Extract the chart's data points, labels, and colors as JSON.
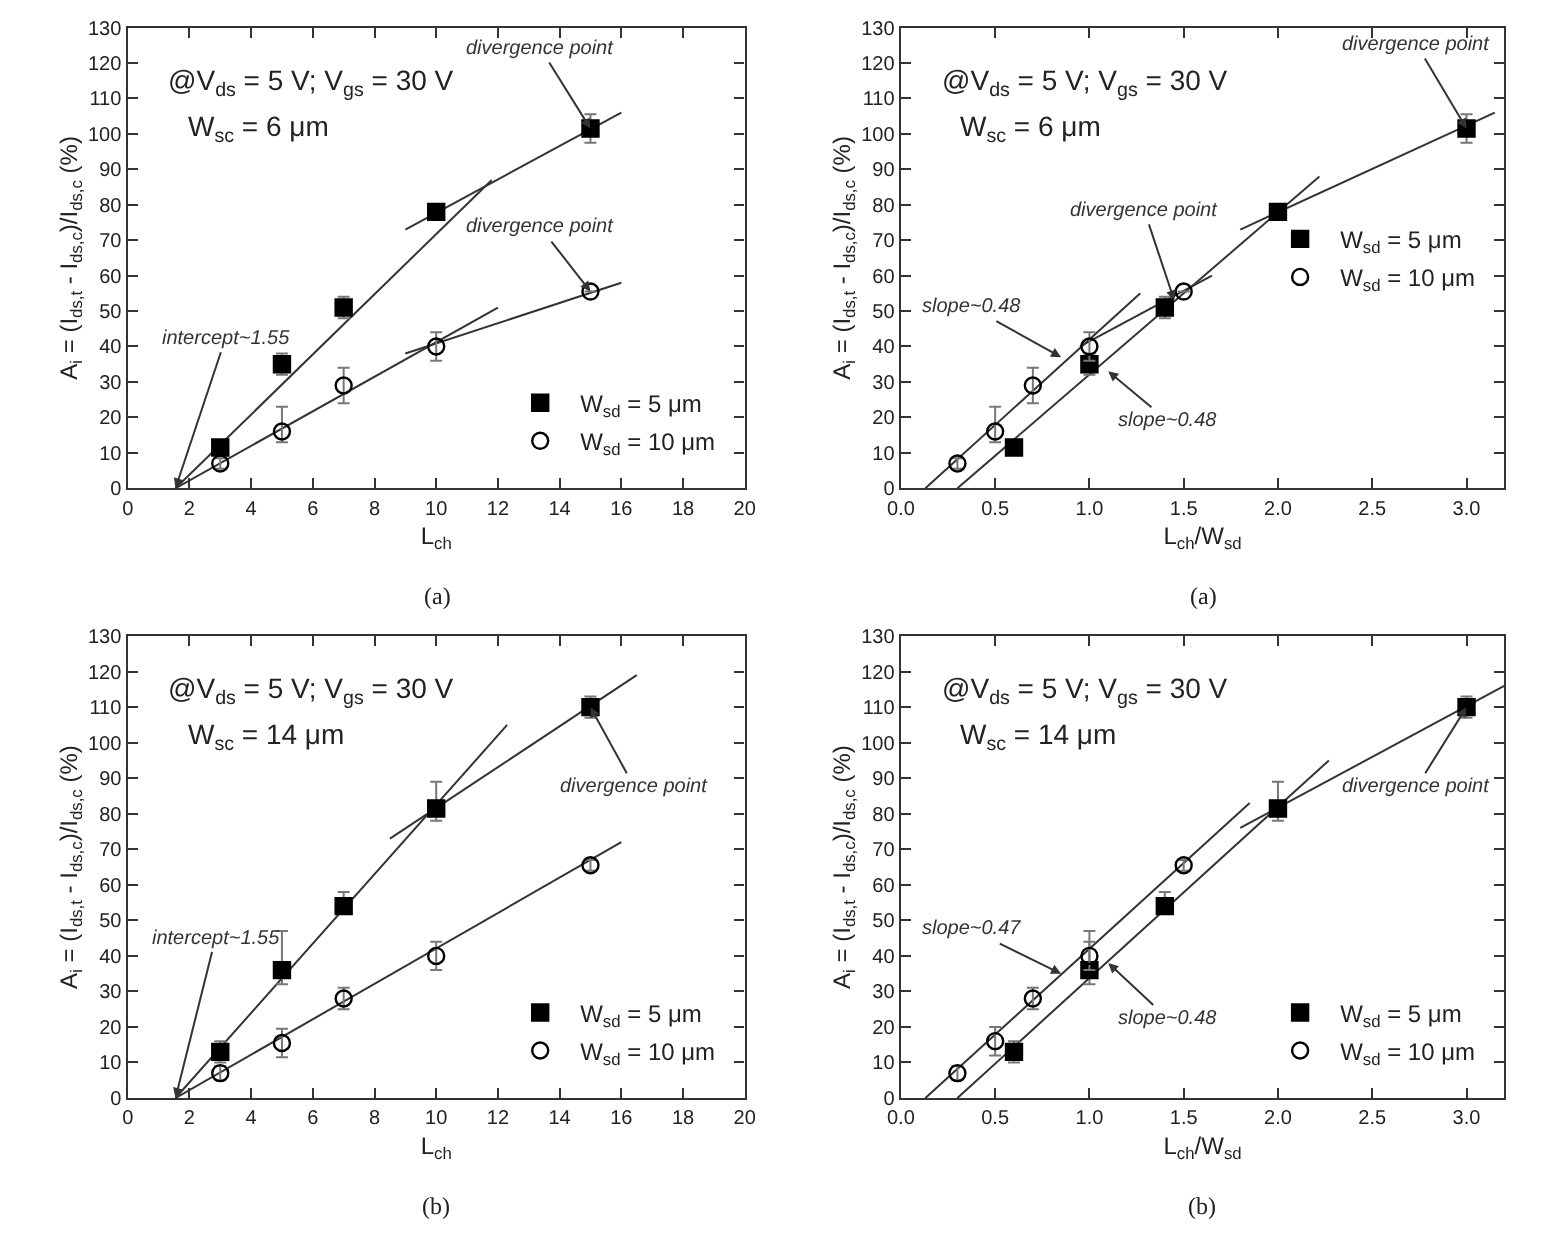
{
  "chart_data": [
    {
      "type": "scatter",
      "xlabel": "L$_{ch}$",
      "ylabel": "A$_{i}$ = (I$_{ds,t}$ - I$_{ds,c}$)/I$_{ds,c}$ (%)",
      "xlim": [
        0,
        20
      ],
      "xticks": [
        0,
        2,
        4,
        6,
        8,
        10,
        12,
        14,
        16,
        18,
        20
      ],
      "ylim": [
        0,
        130
      ],
      "yticks": [
        0,
        10,
        20,
        30,
        40,
        50,
        60,
        70,
        80,
        90,
        100,
        110,
        120,
        130
      ],
      "legend": "bottom right",
      "annotations": [
        "@V$_{ds}$ = 5 V; V$_{gs}$ = 30 V",
        "W$_{sc}$ = 6 μm",
        "(a)",
        {
          "text": "divergence point",
          "x": 15,
          "y": 101.5
        },
        {
          "text": "divergence point",
          "x": 15,
          "y": 55.5
        },
        {
          "text": "intercept~1.55",
          "x": 1.55,
          "y": 0
        }
      ],
      "series": [
        {
          "type": "line",
          "color": "#333333",
          "marker": "none",
          "x": [
            1.55,
            11.8
          ],
          "values": [
            0,
            87
          ]
        },
        {
          "type": "line",
          "color": "#333333",
          "marker": "none",
          "x": [
            9,
            16
          ],
          "values": [
            73,
            106
          ]
        },
        {
          "type": "line",
          "color": "#333333",
          "marker": "none",
          "x": [
            1.55,
            12
          ],
          "values": [
            0,
            51
          ]
        },
        {
          "type": "line",
          "color": "#333333",
          "marker": "none",
          "x": [
            9,
            16
          ],
          "values": [
            38,
            58
          ]
        },
        {
          "name": "W$_{sd}$ = 5 μm",
          "color": "#000000",
          "marker": "square",
          "x": [
            3,
            5,
            7,
            10,
            15
          ],
          "values": [
            11.5,
            35,
            51,
            78,
            101.5
          ],
          "errors": [
            null,
            3,
            3,
            null,
            4
          ]
        },
        {
          "name": "W$_{sd}$ = 10 μm",
          "color": "#000000",
          "marker": "circle",
          "x": [
            3,
            5,
            7,
            10,
            15
          ],
          "values": [
            7,
            16,
            29,
            40,
            55.5
          ],
          "errors": [
            1.5,
            [
              13,
              23
            ],
            [
              24,
              34
            ],
            [
              36,
              44
            ],
            null
          ]
        }
      ]
    },
    {
      "type": "scatter",
      "xlabel": "L$_{ch}$/W$_{sd}$",
      "ylabel": "A$_{i}$ = (I$_{ds,t}$ - I$_{ds,c}$)/I$_{ds,c}$ (%)",
      "xlim": [
        0,
        3.2
      ],
      "xticks": [
        {
          "value": 0,
          "label": "0.0"
        },
        0.5,
        {
          "value": 1,
          "label": "1.0"
        },
        1.5,
        {
          "value": 2,
          "label": "2.0"
        },
        2.5,
        {
          "value": 3,
          "label": "3.0"
        }
      ],
      "ylim": [
        0,
        130
      ],
      "yticks": [
        0,
        10,
        20,
        30,
        40,
        50,
        60,
        70,
        80,
        90,
        100,
        110,
        120,
        130
      ],
      "legend": "right",
      "annotations": [
        "@V$_{ds}$ = 5 V; V$_{gs}$ = 30 V",
        "W$_{sc}$ = 6 μm",
        "(a)",
        {
          "text": "divergence point",
          "x": 3,
          "y": 101.5
        },
        {
          "text": "divergence point",
          "x": 1.45,
          "y": 53
        },
        {
          "text": "slope~0.48",
          "x": 0.85,
          "y": 37
        },
        {
          "text": "slope~0.48",
          "x": 1.1,
          "y": 33
        }
      ],
      "series": [
        {
          "type": "line",
          "color": "#333333",
          "marker": "none",
          "x": [
            0.13,
            1.27
          ],
          "values": [
            0,
            55
          ]
        },
        {
          "type": "line",
          "color": "#333333",
          "marker": "none",
          "x": [
            0.95,
            1.65
          ],
          "values": [
            40,
            60
          ]
        },
        {
          "type": "line",
          "color": "#333333",
          "marker": "none",
          "x": [
            0.3,
            2.22
          ],
          "values": [
            0,
            88
          ]
        },
        {
          "type": "line",
          "color": "#333333",
          "marker": "none",
          "x": [
            1.8,
            3.15
          ],
          "values": [
            73,
            106
          ]
        },
        {
          "name": "W$_{sd}$ = 5 μm",
          "color": "#000000",
          "marker": "square",
          "x": [
            0.6,
            1.0,
            1.4,
            2.0,
            3.0
          ],
          "values": [
            11.5,
            35,
            51,
            78,
            101.5
          ],
          "errors": [
            null,
            3,
            3,
            null,
            4
          ]
        },
        {
          "name": "W$_{sd}$ = 10 μm",
          "color": "#000000",
          "marker": "circle",
          "x": [
            0.3,
            0.5,
            0.7,
            1.0,
            1.5
          ],
          "values": [
            7,
            16,
            29,
            40,
            55.5
          ],
          "errors": [
            1.5,
            [
              13,
              23
            ],
            [
              24,
              34
            ],
            [
              36,
              44
            ],
            null
          ]
        }
      ]
    },
    {
      "type": "scatter",
      "xlabel": "L$_{ch}$",
      "ylabel": "A$_{i}$ = (I$_{ds,t}$ - I$_{ds,c}$)/I$_{ds,c}$ (%)",
      "xlim": [
        0,
        20
      ],
      "xticks": [
        0,
        2,
        4,
        6,
        8,
        10,
        12,
        14,
        16,
        18,
        20
      ],
      "ylim": [
        0,
        130
      ],
      "yticks": [
        0,
        10,
        20,
        30,
        40,
        50,
        60,
        70,
        80,
        90,
        100,
        110,
        120,
        130
      ],
      "legend": "bottom right",
      "annotations": [
        "@V$_{ds}$ = 5 V; V$_{gs}$ = 30 V",
        "W$_{sc}$ = 14 μm",
        "(b)",
        {
          "text": "divergence point",
          "x": 15,
          "y": 110
        },
        {
          "text": "intercept~1.55",
          "x": 1.55,
          "y": 0
        }
      ],
      "series": [
        {
          "type": "line",
          "color": "#333333",
          "marker": "none",
          "x": [
            1.55,
            12.3
          ],
          "values": [
            0,
            105
          ]
        },
        {
          "type": "line",
          "color": "#333333",
          "marker": "none",
          "x": [
            8.5,
            16.5
          ],
          "values": [
            73,
            119
          ]
        },
        {
          "type": "line",
          "color": "#333333",
          "marker": "none",
          "x": [
            1.55,
            16
          ],
          "values": [
            0,
            72
          ]
        },
        {
          "name": "W$_{sd}$ = 5 μm",
          "color": "#000000",
          "marker": "square",
          "x": [
            3,
            5,
            7,
            10,
            15
          ],
          "values": [
            13,
            36,
            54,
            81.5,
            110
          ],
          "errors": [
            3,
            [
              32,
              47
            ],
            [
              52,
              58
            ],
            [
              78,
              89
            ],
            [
              107,
              113
            ]
          ]
        },
        {
          "name": "W$_{sd}$ = 10 μm",
          "color": "#000000",
          "marker": "circle",
          "x": [
            3,
            5,
            7,
            10,
            15
          ],
          "values": [
            7,
            15.5,
            28,
            40,
            65.5
          ],
          "errors": [
            2,
            4,
            3,
            4,
            1.5
          ]
        }
      ]
    },
    {
      "type": "scatter",
      "xlabel": "L$_{ch}$/W$_{sd}$",
      "ylabel": "A$_{i}$ = (I$_{ds,t}$ - I$_{ds,c}$)/I$_{ds,c}$ (%)",
      "xlim": [
        0,
        3.2
      ],
      "xticks": [
        {
          "value": 0,
          "label": "0.0"
        },
        0.5,
        {
          "value": 1,
          "label": "1.0"
        },
        1.5,
        {
          "value": 2,
          "label": "2.0"
        },
        2.5,
        {
          "value": 3,
          "label": "3.0"
        }
      ],
      "ylim": [
        0,
        130
      ],
      "yticks": [
        0,
        10,
        20,
        30,
        40,
        50,
        60,
        70,
        80,
        90,
        100,
        110,
        120,
        130
      ],
      "legend": "bottom right",
      "annotations": [
        "@V$_{ds}$ = 5 V; V$_{gs}$ = 30 V",
        "W$_{sc}$ = 14 μm",
        "(b)",
        {
          "text": "slope~0.47",
          "x": 0.85,
          "y": 35
        },
        {
          "text": "slope~0.48",
          "x": 1.1,
          "y": 38
        },
        {
          "text": "divergence point",
          "x": 3,
          "y": 110
        }
      ],
      "series": [
        {
          "type": "line",
          "color": "#333333",
          "marker": "none",
          "x": [
            0.13,
            1.85
          ],
          "values": [
            0,
            83
          ]
        },
        {
          "type": "line",
          "color": "#333333",
          "marker": "none",
          "x": [
            0.3,
            2.27
          ],
          "values": [
            0,
            95
          ]
        },
        {
          "type": "line",
          "color": "#333333",
          "marker": "none",
          "x": [
            1.8,
            3.2
          ],
          "values": [
            76,
            116
          ]
        },
        {
          "name": "W$_{sd}$ = 5 μm",
          "color": "#000000",
          "marker": "square",
          "x": [
            0.6,
            1.0,
            1.4,
            2.0,
            3.0
          ],
          "values": [
            13,
            36,
            54,
            81.5,
            110
          ],
          "errors": [
            3,
            [
              32,
              47
            ],
            [
              52,
              58
            ],
            [
              78,
              89
            ],
            [
              107,
              113
            ]
          ]
        },
        {
          "name": "W$_{sd}$ = 10 μm",
          "color": "#000000",
          "marker": "circle",
          "x": [
            0.3,
            0.5,
            0.7,
            1.0,
            1.5
          ],
          "values": [
            7,
            16,
            28,
            40,
            65.5
          ],
          "errors": [
            2,
            4,
            3,
            4,
            1.5
          ]
        }
      ]
    }
  ]
}
